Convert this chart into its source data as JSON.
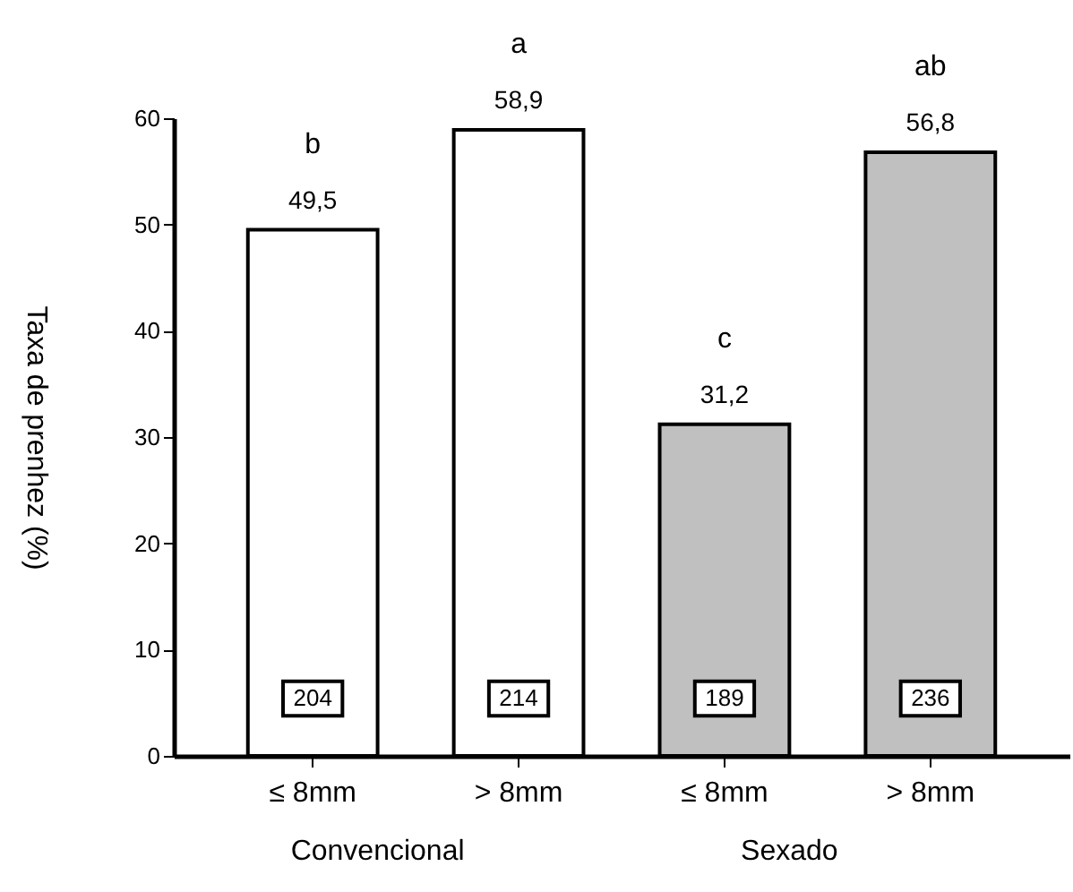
{
  "chart_data": {
    "type": "bar",
    "ylabel": "Taxa de prenhez (%)",
    "categories": [
      "≤ 8mm",
      "> 8mm",
      "≤ 8mm",
      "> 8mm"
    ],
    "values": [
      49.5,
      58.9,
      31.2,
      56.8
    ],
    "value_labels": [
      "49,5",
      "58,9",
      "31,2",
      "56,8"
    ],
    "colors": [
      "#ffffff",
      "#ffffff",
      "#c0c0c0",
      "#c0c0c0"
    ],
    "ylim": [
      0,
      60
    ],
    "yticks": [
      0,
      10,
      20,
      30,
      40,
      50,
      60
    ],
    "annotations": [
      "b",
      "a",
      "c",
      "ab",
      "204",
      "214",
      "189",
      "236",
      "Convencional",
      "Sexado"
    ]
  }
}
